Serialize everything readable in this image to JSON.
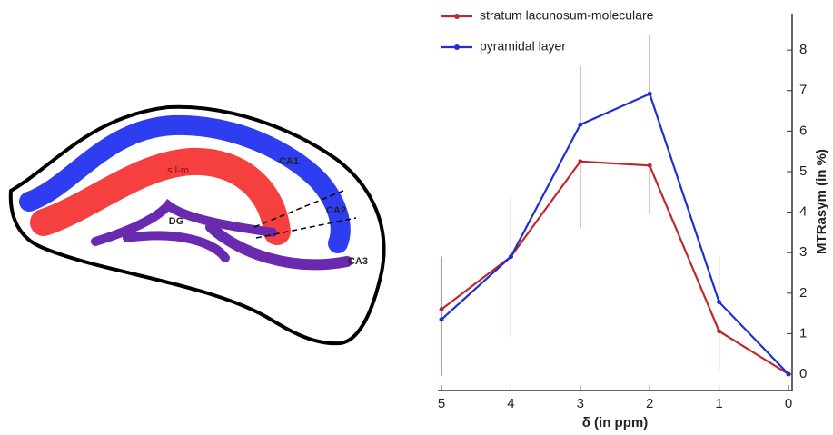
{
  "diagram": {
    "labels": [
      "s l-m",
      "DG",
      "CA1",
      "CA2",
      "CA3"
    ]
  },
  "chart_data": {
    "type": "line",
    "xlabel": "δ (in ppm)",
    "ylabel": "MTRasym (in %)",
    "x": [
      5,
      4,
      3,
      2,
      1,
      0
    ],
    "xlim": [
      5,
      0
    ],
    "xticks": [
      5,
      4,
      3,
      2,
      1,
      0
    ],
    "ylim": [
      0,
      8.9
    ],
    "yticks": [
      0,
      1,
      2,
      3,
      4,
      5,
      6,
      7,
      8
    ],
    "y_axis_side": "right",
    "grid": false,
    "legend": "upper left",
    "series": [
      {
        "name": "stratum lacunosum-moleculare",
        "color": "#c0282d",
        "values": [
          1.6,
          2.9,
          5.25,
          5.15,
          1.06,
          0
        ],
        "errors": [
          1.65,
          2.0,
          1.65,
          1.2,
          1.0,
          0
        ],
        "error_direction": "down"
      },
      {
        "name": "pyramidal layer",
        "color": "#1f2fd0",
        "values": [
          1.35,
          2.9,
          6.16,
          6.92,
          1.78,
          0
        ],
        "errors": [
          1.55,
          1.45,
          1.45,
          1.45,
          1.15,
          0
        ],
        "error_direction": "up"
      }
    ]
  }
}
